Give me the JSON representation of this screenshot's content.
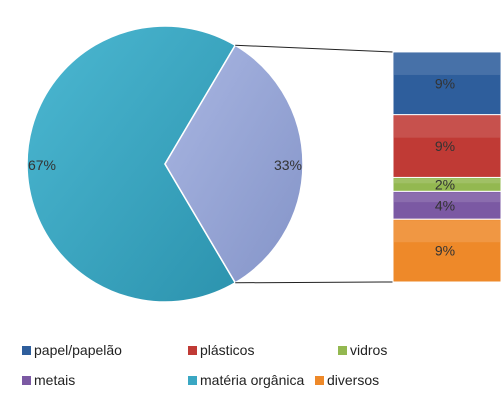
{
  "chart_data": {
    "type": "pie",
    "subtype": "bar-of-pie",
    "pie": {
      "slices": [
        {
          "label": "matéria orgânica",
          "value": 67,
          "display": "67%",
          "color": "#3AA7C3"
        },
        {
          "label": "",
          "value": 33,
          "display": "33%",
          "color": "#98A8D8"
        }
      ]
    },
    "bar": {
      "segments": [
        {
          "label": "papel/papelão",
          "value": 9,
          "display": "9%",
          "color": "#2E5E9C"
        },
        {
          "label": "plásticos",
          "value": 9,
          "display": "9%",
          "color": "#C03A35"
        },
        {
          "label": "vidros",
          "value": 2,
          "display": "2%",
          "color": "#93B850"
        },
        {
          "label": "metais",
          "value": 4,
          "display": "4%",
          "color": "#7B59A3"
        },
        {
          "label": "diversos",
          "value": 9,
          "display": "9%",
          "color": "#EE8929"
        }
      ]
    },
    "legend": {
      "placement": "bottom",
      "items": [
        {
          "label": "papel/papelão",
          "color": "#2E5E9C"
        },
        {
          "label": "plásticos",
          "color": "#C03A35"
        },
        {
          "label": "vidros",
          "color": "#93B850"
        },
        {
          "label": "metais",
          "color": "#7B59A3"
        },
        {
          "label": "matéria orgânica",
          "color": "#3AA7C3"
        },
        {
          "label": "diversos",
          "color": "#EE8929"
        }
      ]
    }
  }
}
